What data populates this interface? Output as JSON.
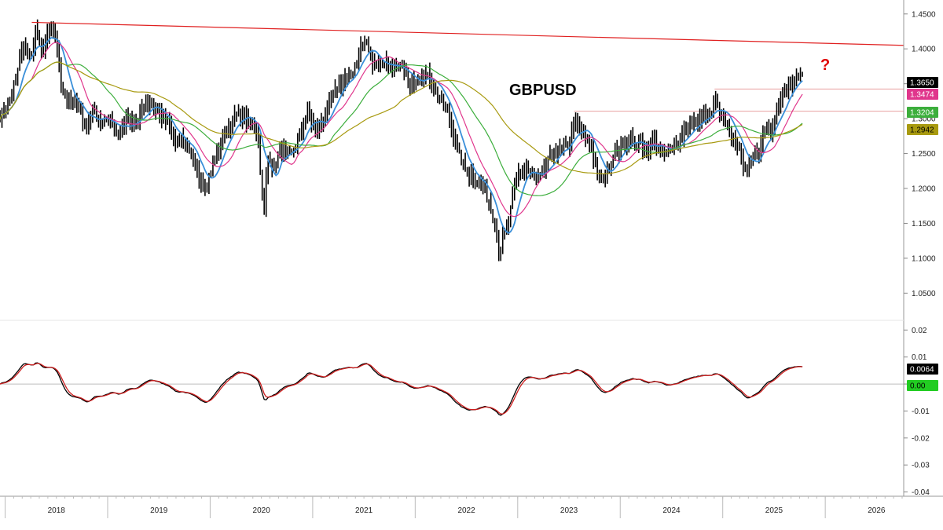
{
  "chart_data": [
    {
      "type": "line",
      "title": "GBPUSD",
      "annotation": "?",
      "y_ticks": [
        "1.4500",
        "1.4000",
        "1.3500",
        "1.3000",
        "1.2500",
        "1.2000",
        "1.1500",
        "1.1000",
        "1.0500"
      ],
      "y_tick_values": [
        1.45,
        1.4,
        1.35,
        1.3,
        1.25,
        1.2,
        1.15,
        1.1,
        1.05
      ],
      "ylim": [
        1.02,
        1.47
      ],
      "x_labels": [
        "2018",
        "2019",
        "2020",
        "2021",
        "2022",
        "2023",
        "2024",
        "2025",
        "2026"
      ],
      "x_label_values": [
        2018.0,
        2019.0,
        2020.0,
        2021.0,
        2022.0,
        2023.0,
        2024.0,
        2025.0,
        2026.0
      ],
      "xlim": [
        2017.45,
        2026.25
      ],
      "price_anchors": [
        [
          2017.45,
          1.305
        ],
        [
          2017.52,
          1.315
        ],
        [
          2017.6,
          1.355
        ],
        [
          2017.67,
          1.402
        ],
        [
          2017.75,
          1.385
        ],
        [
          2017.8,
          1.43
        ],
        [
          2017.85,
          1.395
        ],
        [
          2017.9,
          1.415
        ],
        [
          2017.96,
          1.428
        ],
        [
          2018.02,
          1.385
        ],
        [
          2018.06,
          1.335
        ],
        [
          2018.12,
          1.33
        ],
        [
          2018.2,
          1.32
        ],
        [
          2018.3,
          1.285
        ],
        [
          2018.35,
          1.315
        ],
        [
          2018.45,
          1.29
        ],
        [
          2018.53,
          1.305
        ],
        [
          2018.6,
          1.275
        ],
        [
          2018.68,
          1.3
        ],
        [
          2018.76,
          1.285
        ],
        [
          2018.83,
          1.31
        ],
        [
          2018.9,
          1.325
        ],
        [
          2019.0,
          1.305
        ],
        [
          2019.1,
          1.295
        ],
        [
          2019.15,
          1.265
        ],
        [
          2019.22,
          1.275
        ],
        [
          2019.3,
          1.25
        ],
        [
          2019.38,
          1.22
        ],
        [
          2019.45,
          1.205
        ],
        [
          2019.52,
          1.23
        ],
        [
          2019.6,
          1.265
        ],
        [
          2019.68,
          1.285
        ],
        [
          2019.75,
          1.305
        ],
        [
          2019.83,
          1.3
        ],
        [
          2019.9,
          1.295
        ],
        [
          2019.96,
          1.285
        ],
        [
          2020.0,
          1.205
        ],
        [
          2020.02,
          1.15
        ],
        [
          2020.06,
          1.245
        ],
        [
          2020.12,
          1.23
        ],
        [
          2020.2,
          1.255
        ],
        [
          2020.28,
          1.245
        ],
        [
          2020.37,
          1.275
        ],
        [
          2020.45,
          1.31
        ],
        [
          2020.52,
          1.285
        ],
        [
          2020.6,
          1.295
        ],
        [
          2020.7,
          1.335
        ],
        [
          2020.8,
          1.355
        ],
        [
          2020.88,
          1.365
        ],
        [
          2020.93,
          1.38
        ],
        [
          2020.97,
          1.405
        ],
        [
          2021.02,
          1.41
        ],
        [
          2021.08,
          1.385
        ],
        [
          2021.15,
          1.375
        ],
        [
          2021.22,
          1.385
        ],
        [
          2021.3,
          1.365
        ],
        [
          2021.38,
          1.375
        ],
        [
          2021.45,
          1.345
        ],
        [
          2021.52,
          1.36
        ],
        [
          2021.58,
          1.365
        ],
        [
          2021.66,
          1.355
        ],
        [
          2021.72,
          1.335
        ],
        [
          2021.8,
          1.315
        ],
        [
          2021.86,
          1.285
        ],
        [
          2021.92,
          1.25
        ],
        [
          2022.0,
          1.225
        ],
        [
          2022.08,
          1.215
        ],
        [
          2022.15,
          1.205
        ],
        [
          2022.22,
          1.18
        ],
        [
          2022.28,
          1.15
        ],
        [
          2022.32,
          1.11
        ],
        [
          2022.35,
          1.125
        ],
        [
          2022.39,
          1.14
        ],
        [
          2022.44,
          1.175
        ],
        [
          2022.5,
          1.22
        ],
        [
          2022.56,
          1.23
        ],
        [
          2022.62,
          1.22
        ],
        [
          2022.7,
          1.21
        ],
        [
          2022.78,
          1.235
        ],
        [
          2022.85,
          1.25
        ],
        [
          2022.92,
          1.255
        ],
        [
          2023.0,
          1.265
        ],
        [
          2023.05,
          1.295
        ],
        [
          2023.12,
          1.28
        ],
        [
          2023.2,
          1.265
        ],
        [
          2023.26,
          1.23
        ],
        [
          2023.32,
          1.215
        ],
        [
          2023.38,
          1.225
        ],
        [
          2023.45,
          1.25
        ],
        [
          2023.52,
          1.265
        ],
        [
          2023.6,
          1.27
        ],
        [
          2023.68,
          1.265
        ],
        [
          2023.76,
          1.255
        ],
        [
          2023.83,
          1.27
        ],
        [
          2023.88,
          1.26
        ],
        [
          2023.94,
          1.245
        ],
        [
          2024.0,
          1.255
        ],
        [
          2024.08,
          1.275
        ],
        [
          2024.15,
          1.285
        ],
        [
          2024.22,
          1.29
        ],
        [
          2024.3,
          1.305
        ],
        [
          2024.36,
          1.3
        ],
        [
          2024.42,
          1.325
        ],
        [
          2024.48,
          1.305
        ],
        [
          2024.55,
          1.285
        ],
        [
          2024.62,
          1.27
        ],
        [
          2024.7,
          1.235
        ],
        [
          2024.75,
          1.225
        ],
        [
          2024.8,
          1.245
        ],
        [
          2024.86,
          1.26
        ],
        [
          2024.92,
          1.29
        ],
        [
          2024.97,
          1.285
        ],
        [
          2025.02,
          1.315
        ],
        [
          2025.08,
          1.33
        ],
        [
          2025.15,
          1.345
        ],
        [
          2025.22,
          1.355
        ],
        [
          2025.28,
          1.365
        ]
      ],
      "trendline": {
        "from": [
          2017.76,
          1.438
        ],
        "to": [
          2026.25,
          1.405
        ],
        "color": "#e02020"
      },
      "horizontal_levels": [
        1.3424,
        1.3107
      ],
      "series": [
        {
          "kind": "ohlc",
          "color": "#000000"
        },
        {
          "kind": "ma",
          "window": 2,
          "color": "#3a8fd9"
        },
        {
          "kind": "ma",
          "window": 4,
          "color": "#e0368c"
        },
        {
          "kind": "ma",
          "window": 8,
          "color": "#3cae3c"
        },
        {
          "kind": "ma",
          "window": 16,
          "color": "#a89a10"
        }
      ],
      "last_values": [
        {
          "label": "1.3650",
          "value": 1.365,
          "bg": "#000000",
          "fg": "#ffffff"
        },
        {
          "label": "1.3474",
          "value": 1.3474,
          "bg": "#e0368c",
          "fg": "#ffffff"
        },
        {
          "label": "1.3204",
          "value": 1.3204,
          "bg": "#3cae3c",
          "fg": "#ffffff"
        },
        {
          "label": "1.2942",
          "value": 1.2942,
          "bg": "#a89a10",
          "fg": "#000000"
        }
      ]
    },
    {
      "type": "line",
      "y_ticks": [
        "0.02",
        "0.01",
        "0.00",
        "-0.01",
        "-0.02",
        "-0.03",
        "-0.04"
      ],
      "y_tick_values": [
        0.02,
        0.01,
        0.0,
        -0.01,
        -0.02,
        -0.03,
        -0.04
      ],
      "ylim": [
        -0.041,
        0.023
      ],
      "zero_line": 0.0,
      "series": [
        {
          "kind": "oscillator",
          "color": "#000000"
        },
        {
          "kind": "oscillator-smooth",
          "color": "#cc1f1f"
        }
      ],
      "last_values": [
        {
          "label": "0.0064",
          "value": 0.0064,
          "bg": "#000000",
          "fg": "#ffffff"
        },
        {
          "label": "0.00",
          "value": 0.0,
          "bg": "#22cc22",
          "fg": "#000000"
        }
      ]
    }
  ]
}
